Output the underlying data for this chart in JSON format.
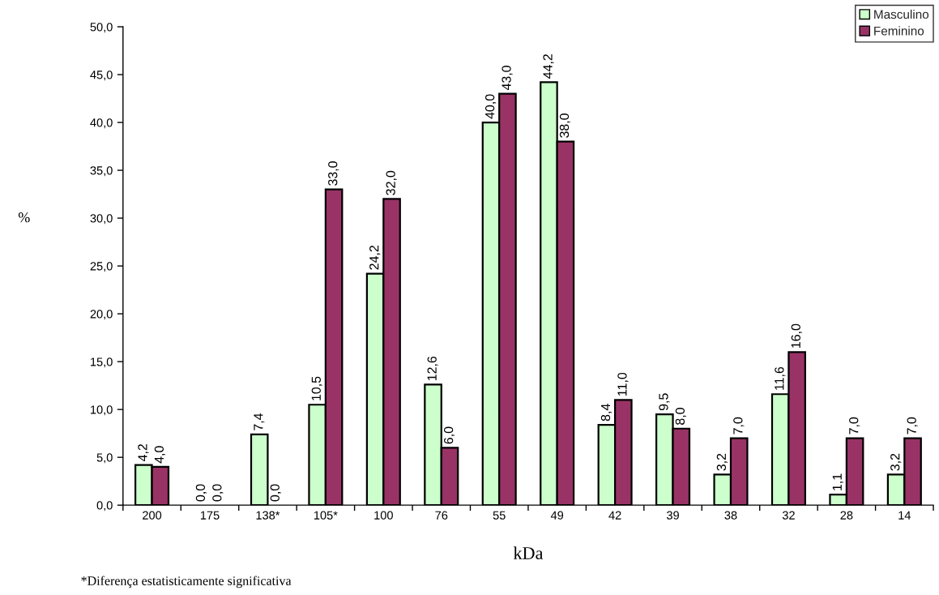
{
  "chart_data": {
    "type": "bar",
    "xlabel": "kDa",
    "ylabel": "%",
    "annotations": [
      "*Diferença estatisticamente significativa"
    ],
    "categories": [
      "200",
      "175",
      "138*",
      "105*",
      "100",
      "76",
      "55",
      "49",
      "42",
      "39",
      "38",
      "32",
      "28",
      "14"
    ],
    "series": [
      {
        "name": "Masculino",
        "color": "#ccffcc",
        "values": [
          4.2,
          0.0,
          7.4,
          10.5,
          24.2,
          12.6,
          40.0,
          44.2,
          8.4,
          9.5,
          3.2,
          11.6,
          1.1,
          3.2
        ],
        "value_labels": [
          "4,2",
          "0,0",
          "7,4",
          "10,5",
          "24,2",
          "12,6",
          "40,0",
          "44,2",
          "8,4",
          "9,5",
          "3,2",
          "11,6",
          "1,1",
          "3,2"
        ]
      },
      {
        "name": "Feminino",
        "color": "#993366",
        "values": [
          4.0,
          0.0,
          0.0,
          33.0,
          32.0,
          6.0,
          43.0,
          38.0,
          11.0,
          8.0,
          7.0,
          16.0,
          7.0,
          7.0
        ],
        "value_labels": [
          "4,0",
          "0,0",
          "0,0",
          "33,0",
          "32,0",
          "6,0",
          "43,0",
          "38,0",
          "11,0",
          "8,0",
          "7,0",
          "16,0",
          "7,0",
          "7,0"
        ]
      }
    ],
    "ylim": [
      0,
      50
    ],
    "yticks": [
      {
        "value": 0,
        "label": "0,0"
      },
      {
        "value": 5,
        "label": "5,0"
      },
      {
        "value": 10,
        "label": "10,0"
      },
      {
        "value": 15,
        "label": "15,0"
      },
      {
        "value": 20,
        "label": "20,0"
      },
      {
        "value": 25,
        "label": "25,0"
      },
      {
        "value": 30,
        "label": "30,0"
      },
      {
        "value": 35,
        "label": "35,0"
      },
      {
        "value": 40,
        "label": "40,0"
      },
      {
        "value": 45,
        "label": "45,0"
      },
      {
        "value": 50,
        "label": "50,0"
      }
    ],
    "legend": "top right"
  }
}
